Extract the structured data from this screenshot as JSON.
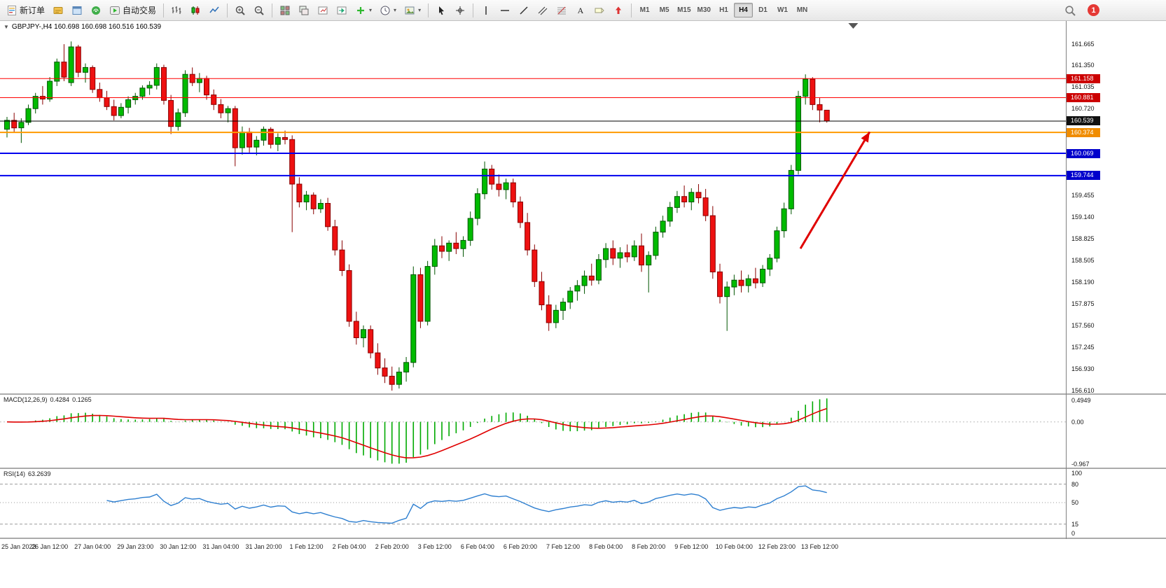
{
  "toolbar": {
    "new_order_label": "新订单",
    "autotrading_label": "自动交易",
    "notification_count": "1",
    "left_icons": [
      "market-watch-icon",
      "data-window-icon",
      "navigator-icon"
    ],
    "chart_type_icons": [
      "bar-chart-icon",
      "candlestick-icon",
      "line-chart-icon"
    ],
    "zoom_icons": [
      "zoom-in-icon",
      "zoom-out-icon"
    ],
    "window_icons": [
      "tile-windows-icon",
      "cascade-windows-icon",
      "chart-shift-icon",
      "autoscroll-icon"
    ],
    "dropdown_icons": [
      "indicators-icon",
      "periods-icon",
      "templates-icon"
    ],
    "pointer_icons": [
      "cursor-icon",
      "crosshair-icon"
    ],
    "object_icons": [
      "vertical-line-icon",
      "horizontal-line-icon",
      "trendline-icon",
      "channel-icon",
      "fibonacci-icon",
      "text-icon",
      "label-icon",
      "arrows-icon"
    ],
    "timeframes": {
      "items": [
        "M1",
        "M5",
        "M15",
        "M30",
        "H1",
        "H4",
        "D1",
        "W1",
        "MN"
      ],
      "selected": "H4"
    }
  },
  "quote_header": {
    "symbol": "GBPJPY-,H4",
    "ohlc": "160.698 160.698 160.516 160.539"
  },
  "chart_data": {
    "type": "candlestick",
    "symbol": "GBPJPY-",
    "timeframe": "H4",
    "current_price": 160.539,
    "y_axis_ticks": [
      161.665,
      161.35,
      161.035,
      160.72,
      159.455,
      159.14,
      158.825,
      158.505,
      158.19,
      157.875,
      157.56,
      157.245,
      156.93,
      156.61
    ],
    "price_lines": [
      {
        "price": 161.158,
        "color": "#FF0000",
        "width": 1,
        "badge_bg": "#CC0000"
      },
      {
        "price": 160.881,
        "color": "#FF0000",
        "width": 1,
        "badge_bg": "#CC0000"
      },
      {
        "price": 160.539,
        "color": "#000000",
        "width": 1,
        "badge_bg": "#111111"
      },
      {
        "price": 160.374,
        "color": "#FF9900",
        "width": 2,
        "badge_bg": "#F08C00"
      },
      {
        "price": 160.069,
        "color": "#0000EE",
        "width": 2,
        "badge_bg": "#0000CC"
      },
      {
        "price": 159.744,
        "color": "#0000EE",
        "width": 2,
        "badge_bg": "#0000CC"
      }
    ],
    "arrow": {
      "from_bar": 111.3,
      "from_price": 158.68,
      "to_bar": 121.0,
      "to_price": 160.38,
      "color": "#E00000",
      "width": 3
    },
    "shift_marker_bar": 118.7,
    "colors": {
      "up": "#00BB00",
      "up_stroke": "#005500",
      "down": "#EE1111",
      "down_stroke": "#880000",
      "bg": "#FFFFFF"
    },
    "time_labels": [
      "25 Jan 2023",
      "26 Jan 12:00",
      "27 Jan 04:00",
      "29 Jan 23:00",
      "30 Jan 12:00",
      "31 Jan 04:00",
      "31 Jan 20:00",
      "1 Feb 12:00",
      "2 Feb 04:00",
      "2 Feb 20:00",
      "3 Feb 12:00",
      "6 Feb 04:00",
      "6 Feb 20:00",
      "7 Feb 12:00",
      "8 Feb 04:00",
      "8 Feb 20:00",
      "9 Feb 12:00",
      "10 Feb 04:00",
      "12 Feb 23:00",
      "13 Feb 12:00"
    ],
    "label_every_n_bars": 6,
    "candles": [
      [
        160.42,
        160.6,
        160.3,
        160.55
      ],
      [
        160.55,
        160.66,
        160.38,
        160.44
      ],
      [
        160.44,
        160.58,
        160.22,
        160.52
      ],
      [
        160.52,
        160.78,
        160.48,
        160.72
      ],
      [
        160.72,
        160.95,
        160.65,
        160.9
      ],
      [
        160.9,
        161.05,
        160.78,
        160.86
      ],
      [
        160.86,
        161.18,
        160.82,
        161.12
      ],
      [
        161.12,
        161.45,
        161.05,
        161.4
      ],
      [
        161.4,
        161.66,
        161.12,
        161.18
      ],
      [
        161.1,
        161.7,
        161.05,
        161.62
      ],
      [
        161.62,
        161.65,
        161.18,
        161.25
      ],
      [
        161.25,
        161.38,
        161.1,
        161.32
      ],
      [
        161.32,
        161.35,
        160.95,
        161.0
      ],
      [
        161.0,
        161.1,
        160.82,
        160.88
      ],
      [
        160.88,
        160.98,
        160.7,
        160.75
      ],
      [
        160.75,
        160.85,
        160.55,
        160.62
      ],
      [
        160.62,
        160.8,
        160.58,
        160.74
      ],
      [
        160.74,
        160.9,
        160.65,
        160.85
      ],
      [
        160.85,
        160.95,
        160.78,
        160.9
      ],
      [
        160.9,
        161.06,
        160.85,
        161.02
      ],
      [
        161.02,
        161.12,
        160.92,
        161.06
      ],
      [
        161.06,
        161.38,
        161.0,
        161.32
      ],
      [
        161.32,
        161.36,
        160.78,
        160.84
      ],
      [
        160.84,
        160.92,
        160.35,
        160.46
      ],
      [
        160.46,
        160.72,
        160.4,
        160.66
      ],
      [
        160.66,
        161.28,
        160.6,
        161.22
      ],
      [
        161.22,
        161.32,
        161.05,
        161.1
      ],
      [
        161.1,
        161.24,
        160.96,
        161.16
      ],
      [
        161.16,
        161.2,
        160.85,
        160.92
      ],
      [
        160.92,
        161.0,
        160.7,
        160.78
      ],
      [
        160.78,
        160.86,
        160.58,
        160.66
      ],
      [
        160.66,
        160.76,
        160.52,
        160.72
      ],
      [
        160.72,
        160.76,
        159.88,
        160.15
      ],
      [
        160.15,
        160.46,
        160.05,
        160.38
      ],
      [
        160.38,
        160.44,
        160.08,
        160.16
      ],
      [
        160.16,
        160.32,
        160.04,
        160.26
      ],
      [
        160.26,
        160.46,
        160.18,
        160.42
      ],
      [
        160.42,
        160.45,
        160.14,
        160.2
      ],
      [
        160.2,
        160.36,
        160.1,
        160.3
      ],
      [
        160.3,
        160.4,
        160.2,
        160.27
      ],
      [
        160.27,
        160.33,
        158.92,
        159.62
      ],
      [
        159.62,
        159.72,
        159.28,
        159.36
      ],
      [
        159.36,
        159.52,
        159.24,
        159.46
      ],
      [
        159.46,
        159.5,
        159.18,
        159.26
      ],
      [
        159.26,
        159.4,
        159.2,
        159.34
      ],
      [
        159.34,
        159.42,
        158.94,
        159.0
      ],
      [
        159.0,
        159.1,
        158.58,
        158.66
      ],
      [
        158.66,
        158.8,
        158.28,
        158.36
      ],
      [
        158.36,
        158.45,
        157.54,
        157.62
      ],
      [
        157.62,
        157.76,
        157.28,
        157.38
      ],
      [
        157.38,
        157.56,
        157.24,
        157.5
      ],
      [
        157.5,
        157.56,
        157.08,
        157.16
      ],
      [
        157.16,
        157.3,
        156.84,
        156.94
      ],
      [
        156.94,
        157.08,
        156.72,
        156.82
      ],
      [
        156.82,
        156.96,
        156.61,
        156.7
      ],
      [
        156.7,
        156.95,
        156.64,
        156.88
      ],
      [
        156.88,
        157.1,
        156.74,
        157.02
      ],
      [
        157.02,
        158.42,
        156.95,
        158.3
      ],
      [
        158.3,
        158.4,
        157.52,
        157.62
      ],
      [
        157.62,
        158.5,
        157.56,
        158.42
      ],
      [
        158.42,
        158.82,
        158.3,
        158.72
      ],
      [
        158.72,
        158.86,
        158.54,
        158.64
      ],
      [
        158.64,
        158.8,
        158.5,
        158.76
      ],
      [
        158.76,
        158.92,
        158.6,
        158.68
      ],
      [
        158.68,
        158.86,
        158.56,
        158.8
      ],
      [
        158.8,
        159.22,
        158.72,
        159.12
      ],
      [
        159.12,
        159.56,
        159.02,
        159.48
      ],
      [
        159.48,
        159.95,
        159.4,
        159.84
      ],
      [
        159.84,
        159.9,
        159.54,
        159.62
      ],
      [
        159.62,
        159.76,
        159.44,
        159.54
      ],
      [
        159.54,
        159.7,
        159.4,
        159.64
      ],
      [
        159.64,
        159.7,
        159.28,
        159.36
      ],
      [
        159.36,
        159.44,
        158.98,
        159.06
      ],
      [
        159.06,
        159.2,
        158.58,
        158.66
      ],
      [
        158.66,
        158.74,
        158.12,
        158.2
      ],
      [
        158.2,
        158.34,
        157.78,
        157.86
      ],
      [
        157.86,
        158.0,
        157.48,
        157.6
      ],
      [
        157.6,
        157.86,
        157.52,
        157.78
      ],
      [
        157.78,
        157.96,
        157.64,
        157.9
      ],
      [
        157.9,
        158.12,
        157.8,
        158.06
      ],
      [
        158.06,
        158.22,
        157.92,
        158.14
      ],
      [
        158.14,
        158.36,
        158.02,
        158.28
      ],
      [
        158.28,
        158.46,
        158.14,
        158.22
      ],
      [
        158.22,
        158.6,
        158.16,
        158.52
      ],
      [
        158.52,
        158.76,
        158.4,
        158.68
      ],
      [
        158.68,
        158.8,
        158.44,
        158.54
      ],
      [
        158.54,
        158.7,
        158.4,
        158.62
      ],
      [
        158.62,
        158.74,
        158.48,
        158.56
      ],
      [
        158.56,
        158.8,
        158.5,
        158.72
      ],
      [
        158.72,
        158.9,
        158.34,
        158.44
      ],
      [
        158.44,
        158.64,
        158.04,
        158.58
      ],
      [
        158.58,
        159.0,
        158.52,
        158.92
      ],
      [
        158.92,
        159.16,
        158.84,
        159.08
      ],
      [
        159.08,
        159.36,
        159.0,
        159.28
      ],
      [
        159.28,
        159.52,
        159.2,
        159.44
      ],
      [
        159.44,
        159.6,
        159.28,
        159.36
      ],
      [
        159.36,
        159.56,
        159.24,
        159.5
      ],
      [
        159.5,
        159.62,
        159.34,
        159.42
      ],
      [
        159.42,
        159.55,
        159.08,
        159.16
      ],
      [
        159.16,
        159.3,
        158.24,
        158.34
      ],
      [
        158.34,
        158.46,
        157.88,
        157.98
      ],
      [
        157.98,
        158.2,
        157.48,
        158.12
      ],
      [
        158.12,
        158.3,
        158.0,
        158.22
      ],
      [
        158.22,
        158.36,
        158.04,
        158.14
      ],
      [
        158.14,
        158.3,
        158.04,
        158.24
      ],
      [
        158.24,
        158.4,
        158.1,
        158.18
      ],
      [
        158.18,
        158.44,
        158.12,
        158.38
      ],
      [
        158.38,
        158.6,
        158.28,
        158.54
      ],
      [
        158.54,
        159.0,
        158.48,
        158.94
      ],
      [
        158.94,
        159.35,
        158.84,
        159.26
      ],
      [
        159.26,
        159.9,
        159.18,
        159.82
      ],
      [
        159.82,
        160.98,
        159.76,
        160.9
      ],
      [
        160.9,
        161.22,
        160.78,
        161.15
      ],
      [
        161.15,
        161.18,
        160.7,
        160.78
      ],
      [
        160.78,
        160.88,
        160.52,
        160.7
      ],
      [
        160.698,
        160.698,
        160.516,
        160.539
      ]
    ],
    "indicators": {
      "macd": {
        "label": "MACD(12,26,9)",
        "value_main": "0.4284",
        "value_signal": "0.1265",
        "fast": 12,
        "slow": 26,
        "signal": 9,
        "scale_labels": [
          "0.4949",
          "0.00",
          "-0.967"
        ],
        "scale_values": [
          0.4949,
          0.0,
          -0.967
        ],
        "histogram_color": "#00AA00",
        "signal_color": "#E00000"
      },
      "rsi": {
        "label": "RSI(14)",
        "value": "63.2639",
        "period": 14,
        "levels": [
          80,
          50,
          15
        ],
        "scale_labels": [
          "100",
          "80",
          "50",
          "15",
          "0"
        ],
        "scale_values": [
          100,
          80,
          50,
          15,
          0
        ],
        "line_color": "#2E7FD0"
      }
    }
  }
}
